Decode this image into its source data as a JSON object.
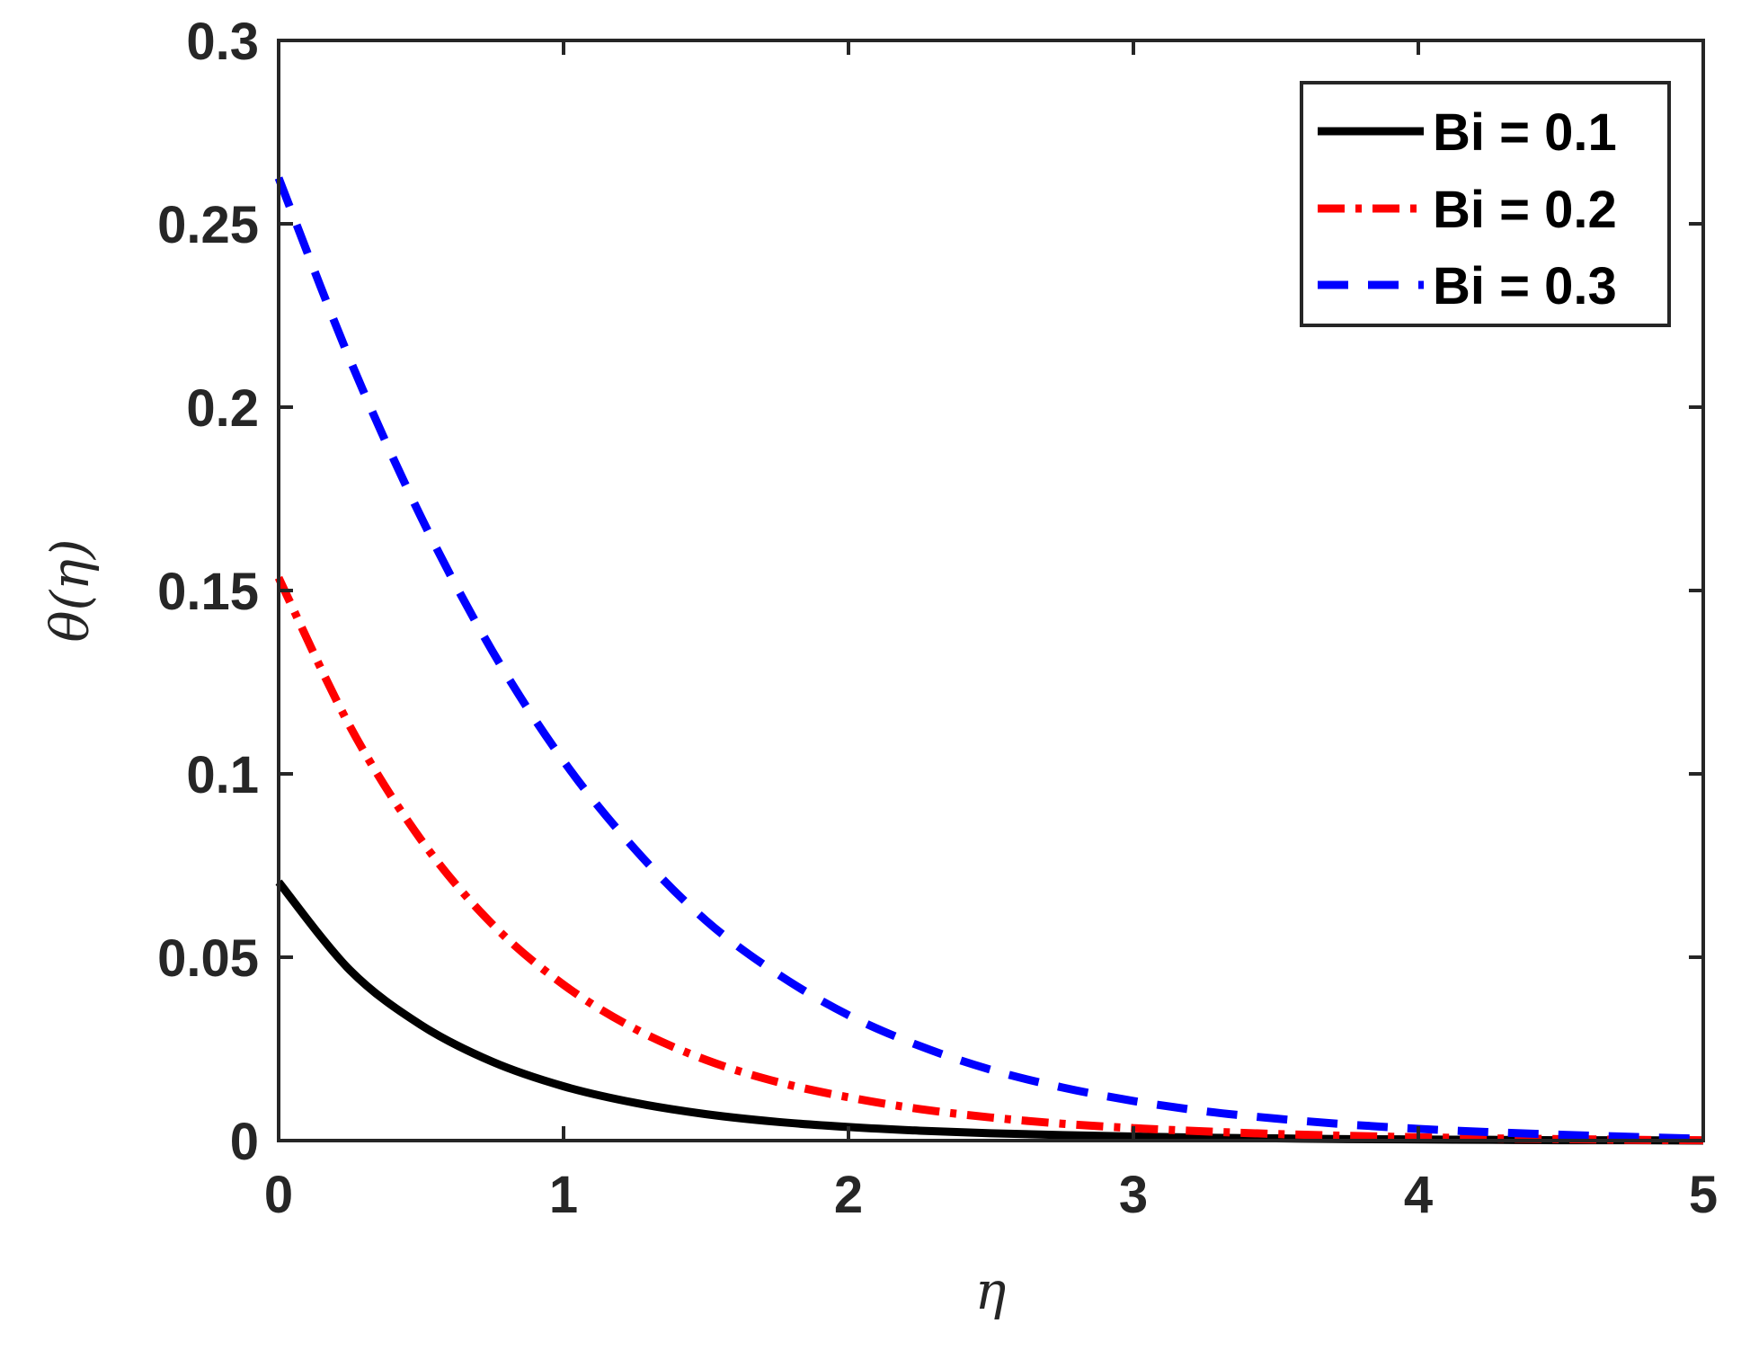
{
  "chart_data": {
    "type": "line",
    "xlabel": "η",
    "ylabel": "θ(η)",
    "xlim": [
      0,
      5
    ],
    "ylim": [
      0,
      0.3
    ],
    "x_ticks": [
      "0",
      "1",
      "2",
      "3",
      "4",
      "5"
    ],
    "y_ticks": [
      "0",
      "0.05",
      "0.1",
      "0.15",
      "0.2",
      "0.25",
      "0.3"
    ],
    "grid": false,
    "legend_position": "top-right",
    "x": [
      0,
      0.25,
      0.5,
      0.75,
      1,
      1.25,
      1.5,
      1.75,
      2,
      2.25,
      2.5,
      2.75,
      3,
      3.25,
      3.5,
      3.75,
      4,
      4.25,
      4.5,
      4.75,
      5
    ],
    "series": [
      {
        "name": "Bi = 0.1",
        "color": "#000000",
        "dash": "solid",
        "values": [
          0.0705,
          0.0465,
          0.0315,
          0.0215,
          0.0148,
          0.0103,
          0.0072,
          0.0051,
          0.0037,
          0.0027,
          0.002,
          0.0015,
          0.0011,
          0.0008,
          0.0006,
          0.0004,
          0.0003,
          0.0002,
          0.0001,
          0.0001,
          0.0
        ]
      },
      {
        "name": "Bi = 0.2",
        "color": "#ff0000",
        "dash": "dashdot",
        "values": [
          0.1535,
          0.113,
          0.082,
          0.059,
          0.0425,
          0.0305,
          0.022,
          0.016,
          0.0118,
          0.0086,
          0.0063,
          0.0046,
          0.0034,
          0.0025,
          0.0018,
          0.0013,
          0.0009,
          0.0006,
          0.0004,
          0.0002,
          0.0001
        ]
      },
      {
        "name": "Bi = 0.3",
        "color": "#0000ff",
        "dash": "dashed",
        "values": [
          0.2625,
          0.213,
          0.17,
          0.1335,
          0.1035,
          0.0795,
          0.06,
          0.0455,
          0.0342,
          0.0258,
          0.0193,
          0.0145,
          0.0108,
          0.008,
          0.006,
          0.0044,
          0.0032,
          0.0023,
          0.0016,
          0.001,
          0.0005
        ]
      }
    ]
  }
}
